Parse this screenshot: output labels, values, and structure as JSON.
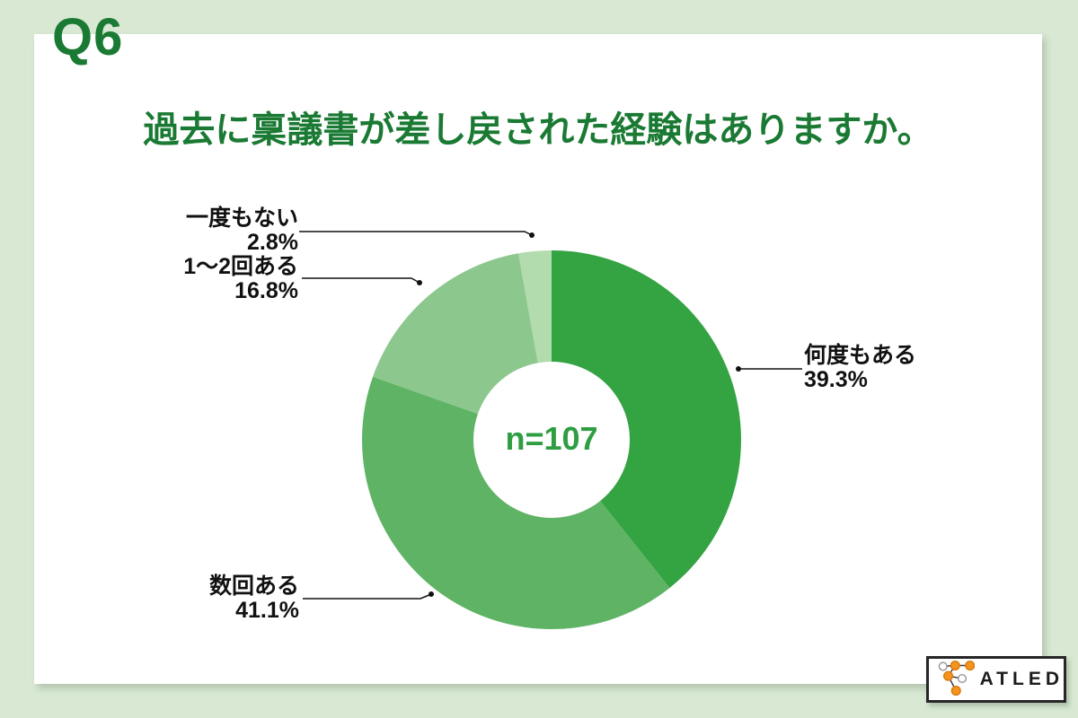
{
  "page": {
    "question_number": "Q6",
    "title": "過去に稟議書が差し戻された経験はありますか。"
  },
  "chart_data": {
    "type": "pie",
    "subtype": "donut",
    "title": "過去に稟議書が差し戻された経験はありますか。",
    "center_label": "n=107",
    "sample_size": 107,
    "start_angle": "top",
    "direction": "clockwise",
    "inner_radius_ratio": 0.41,
    "legend_position": "callout-labels",
    "segments": [
      {
        "label": "何度もある",
        "value": 39.3,
        "display": "39.3%",
        "color": "#34a342"
      },
      {
        "label": "数回ある",
        "value": 41.1,
        "display": "41.1%",
        "color": "#5fb364"
      },
      {
        "label": "1〜2回ある",
        "value": 16.8,
        "display": "16.8%",
        "color": "#8cc78e"
      },
      {
        "label": "一度もない",
        "value": 2.8,
        "display": "2.8%",
        "color": "#b2dbae"
      }
    ]
  },
  "callouts": {
    "ichidomonai": {
      "label": "一度もない",
      "pct": "2.8%"
    },
    "ichinikai": {
      "label": "1〜2回ある",
      "pct": "16.8%"
    },
    "nandomo": {
      "label": "何度もある",
      "pct": "39.3%"
    },
    "sukai": {
      "label": "数回ある",
      "pct": "41.1%"
    }
  },
  "logo": {
    "text": "ATLED"
  },
  "colors": {
    "background": "#d8e8d2",
    "card": "#ffffff",
    "heading_green": "#1a7a33",
    "center_label_green": "#2f9e43",
    "callout_text": "#111111"
  }
}
